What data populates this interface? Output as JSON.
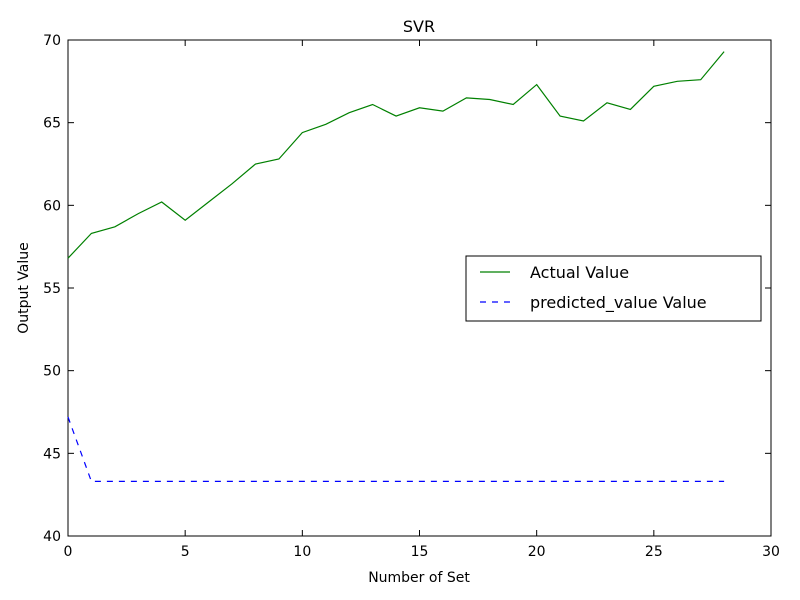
{
  "chart_data": {
    "type": "line",
    "title": "SVR",
    "xlabel": "Number of Set",
    "ylabel": "Output Value",
    "xlim": [
      0,
      30
    ],
    "ylim": [
      40,
      70
    ],
    "xticks": [
      0,
      5,
      10,
      15,
      20,
      25,
      30
    ],
    "yticks": [
      40,
      45,
      50,
      55,
      60,
      65,
      70
    ],
    "grid": false,
    "legend_position": "center-right",
    "series": [
      {
        "name": "Actual Value",
        "color": "#008000",
        "style": "solid",
        "x": [
          0,
          1,
          2,
          3,
          4,
          5,
          6,
          7,
          8,
          9,
          10,
          11,
          12,
          13,
          14,
          15,
          16,
          17,
          18,
          19,
          20,
          21,
          22,
          23,
          24,
          25,
          26,
          27,
          28
        ],
        "values": [
          56.8,
          58.3,
          58.7,
          59.5,
          60.2,
          59.1,
          60.2,
          61.3,
          62.5,
          62.8,
          64.4,
          64.9,
          65.6,
          66.1,
          65.4,
          65.9,
          65.7,
          66.5,
          66.4,
          66.1,
          67.3,
          65.4,
          65.1,
          66.2,
          65.8,
          67.2,
          67.5,
          67.6,
          69.3
        ]
      },
      {
        "name": "predicted_value Value",
        "color": "#0000ff",
        "style": "dashed",
        "x": [
          0,
          1,
          2,
          3,
          4,
          5,
          6,
          7,
          8,
          9,
          10,
          11,
          12,
          13,
          14,
          15,
          16,
          17,
          18,
          19,
          20,
          21,
          22,
          23,
          24,
          25,
          26,
          27,
          28
        ],
        "values": [
          47.2,
          43.3,
          43.3,
          43.3,
          43.3,
          43.3,
          43.3,
          43.3,
          43.3,
          43.3,
          43.3,
          43.3,
          43.3,
          43.3,
          43.3,
          43.3,
          43.3,
          43.3,
          43.3,
          43.3,
          43.3,
          43.3,
          43.3,
          43.3,
          43.3,
          43.3,
          43.3,
          43.3,
          43.3
        ]
      }
    ]
  }
}
